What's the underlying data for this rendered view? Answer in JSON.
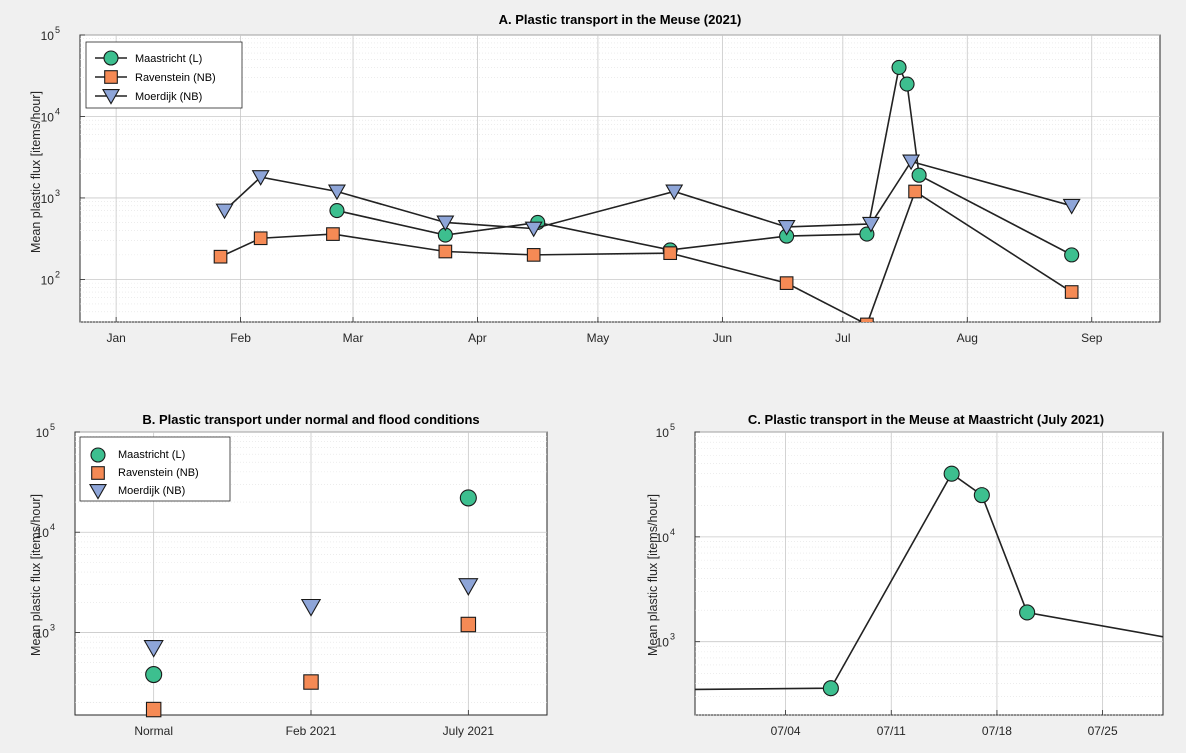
{
  "colors": {
    "maastricht": "#3dbf8f",
    "ravenstein": "#f58a55",
    "moerdijk": "#8ea5d8"
  },
  "chart_data": [
    {
      "id": "A",
      "type": "line",
      "title": "A. Plastic transport in the Meuse (2021)",
      "ylabel": "Mean plastic flux [items/hour]",
      "xlabel": "",
      "yscale": "log",
      "ylim": [
        30,
        100000
      ],
      "xlim": [
        "2020-12-23",
        "2021-09-18"
      ],
      "xticks": [
        {
          "date": "2021-01-01",
          "label": "Jan"
        },
        {
          "date": "2021-02-01",
          "label": "Feb"
        },
        {
          "date": "2021-03-01",
          "label": "Mar"
        },
        {
          "date": "2021-04-01",
          "label": "Apr"
        },
        {
          "date": "2021-05-01",
          "label": "May"
        },
        {
          "date": "2021-06-01",
          "label": "Jun"
        },
        {
          "date": "2021-07-01",
          "label": "Jul"
        },
        {
          "date": "2021-08-01",
          "label": "Aug"
        },
        {
          "date": "2021-09-01",
          "label": "Sep"
        }
      ],
      "grid": true,
      "legend": "top-left",
      "series": [
        {
          "name": "Maastricht (L)",
          "marker": "circle",
          "color_key": "maastricht",
          "points": [
            {
              "x": "2021-02-25",
              "y": 700
            },
            {
              "x": "2021-03-24",
              "y": 350
            },
            {
              "x": "2021-04-16",
              "y": 500
            },
            {
              "x": "2021-05-19",
              "y": 230
            },
            {
              "x": "2021-06-17",
              "y": 340
            },
            {
              "x": "2021-07-07",
              "y": 360
            },
            {
              "x": "2021-07-15",
              "y": 40000
            },
            {
              "x": "2021-07-17",
              "y": 25000
            },
            {
              "x": "2021-07-20",
              "y": 1900
            },
            {
              "x": "2021-08-27",
              "y": 200
            }
          ]
        },
        {
          "name": "Ravenstein (NB)",
          "marker": "square",
          "color_key": "ravenstein",
          "points": [
            {
              "x": "2021-01-27",
              "y": 190
            },
            {
              "x": "2021-02-06",
              "y": 320
            },
            {
              "x": "2021-02-24",
              "y": 360
            },
            {
              "x": "2021-03-24",
              "y": 220
            },
            {
              "x": "2021-04-15",
              "y": 200
            },
            {
              "x": "2021-05-19",
              "y": 210
            },
            {
              "x": "2021-06-17",
              "y": 90
            },
            {
              "x": "2021-07-07",
              "y": 28
            },
            {
              "x": "2021-07-19",
              "y": 1200
            },
            {
              "x": "2021-08-27",
              "y": 70
            }
          ]
        },
        {
          "name": "Moerdijk (NB)",
          "marker": "triangle-down",
          "color_key": "moerdijk",
          "points": [
            {
              "x": "2021-01-28",
              "y": 700
            },
            {
              "x": "2021-02-06",
              "y": 1800
            },
            {
              "x": "2021-02-25",
              "y": 1200
            },
            {
              "x": "2021-03-24",
              "y": 500
            },
            {
              "x": "2021-04-15",
              "y": 420
            },
            {
              "x": "2021-05-20",
              "y": 1200
            },
            {
              "x": "2021-06-17",
              "y": 440
            },
            {
              "x": "2021-07-08",
              "y": 480
            },
            {
              "x": "2021-07-18",
              "y": 2800
            },
            {
              "x": "2021-08-27",
              "y": 800
            }
          ]
        }
      ]
    },
    {
      "id": "B",
      "type": "scatter",
      "title": "B. Plastic transport under normal and flood conditions",
      "ylabel": "Mean plastic flux [items/hour]",
      "xlabel": "",
      "yscale": "log",
      "ylim": [
        150,
        100000
      ],
      "categories": [
        "Normal",
        "Feb 2021",
        "July 2021"
      ],
      "grid": true,
      "legend": "top-left",
      "series": [
        {
          "name": "Maastricht (L)",
          "marker": "circle",
          "color_key": "maastricht",
          "values": [
            380,
            null,
            22000
          ]
        },
        {
          "name": "Ravenstein (NB)",
          "marker": "square",
          "color_key": "ravenstein",
          "values": [
            170,
            320,
            1200
          ]
        },
        {
          "name": "Moerdijk (NB)",
          "marker": "triangle-down",
          "color_key": "moerdijk",
          "values": [
            700,
            1800,
            2900
          ]
        }
      ]
    },
    {
      "id": "C",
      "type": "line",
      "title": "C. Plastic transport in the Meuse at Maastricht (July 2021)",
      "ylabel": "Mean plastic flux [items/hour]",
      "xlabel": "",
      "yscale": "log",
      "ylim": [
        200,
        100000
      ],
      "xlim": [
        "2021-06-28",
        "2021-07-29"
      ],
      "xticks": [
        {
          "date": "2021-07-04",
          "label": "07/04"
        },
        {
          "date": "2021-07-11",
          "label": "07/11"
        },
        {
          "date": "2021-07-18",
          "label": "07/18"
        },
        {
          "date": "2021-07-25",
          "label": "07/25"
        }
      ],
      "grid": true,
      "series": [
        {
          "name": "Maastricht (L)",
          "marker": "circle",
          "color_key": "maastricht",
          "points": [
            {
              "x": "2021-06-17",
              "y": 340,
              "marker": false
            },
            {
              "x": "2021-07-07",
              "y": 360
            },
            {
              "x": "2021-07-15",
              "y": 40000
            },
            {
              "x": "2021-07-17",
              "y": 25000
            },
            {
              "x": "2021-07-20",
              "y": 1900
            },
            {
              "x": "2021-08-27",
              "y": 200,
              "marker": false
            }
          ]
        }
      ]
    }
  ]
}
